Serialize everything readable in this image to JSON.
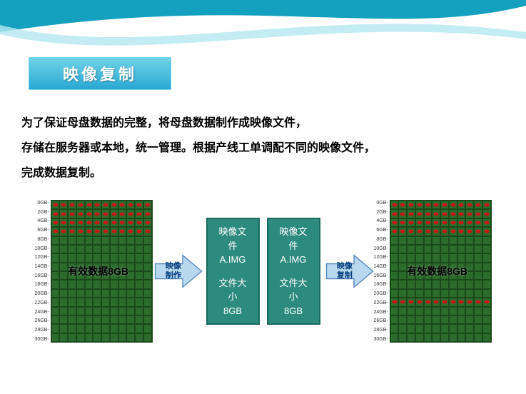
{
  "title": "映像复制",
  "body_lines": [
    "为了保证母盘数据的完整，将母盘数据制作成映像文件，",
    "存储在服务器或本地，统一管理。根据产线工单调配不同的映像文件，",
    "完成数据复制。"
  ],
  "colors": {
    "wave_primary": "#14a0bf",
    "wave_secondary": "#b5e8f0",
    "banner_top": "#6fd4e8",
    "banner_bottom": "#2aa8d4",
    "banner_text": "#ffffff",
    "body_text": "#000000",
    "grid_bg": "#2d6b2d",
    "grid_line": "#1a4a1a",
    "dot": "#c91616",
    "arrow_fill": "#b8d8f0",
    "arrow_stroke": "#5a8abf",
    "arrow_text": "#003a7a",
    "imgbox_bg": "#2d8b7e",
    "imgbox_border": "#1a6b5e",
    "imgbox_text": "#ffffff"
  },
  "disk_left": {
    "label": "有效数据8GB",
    "ylabels": [
      "0GB-",
      "2GB-",
      "4GB-",
      "6GB-",
      "8GB-",
      "10GB-",
      "12GB-",
      "14GB-",
      "16GB-",
      "18GB-",
      "20GB-",
      "22GB-",
      "24GB-",
      "26GB-",
      "28GB-",
      "30GB-"
    ],
    "rows": 16,
    "cols": 12,
    "filled_rows": [
      0,
      1,
      2,
      3
    ]
  },
  "disk_right": {
    "label": "有效数据8GB",
    "ylabels": [
      "0GB-",
      "2GB-",
      "4GB-",
      "6GB-",
      "8GB-",
      "10GB-",
      "12GB-",
      "14GB-",
      "16GB-",
      "18GB-",
      "20GB-",
      "22GB-",
      "24GB-",
      "26GB-",
      "28GB-",
      "30GB-"
    ],
    "rows": 16,
    "cols": 12,
    "filled_rows": [
      0,
      1,
      2,
      3,
      11
    ]
  },
  "arrow1_label": "映像\n制作",
  "arrow2_label": "映像\n复制",
  "imgbox": {
    "line1": "映像文",
    "line2": "件",
    "line3": "A.IMG",
    "line4": "文件大",
    "line5": "小",
    "line6": "8GB"
  }
}
